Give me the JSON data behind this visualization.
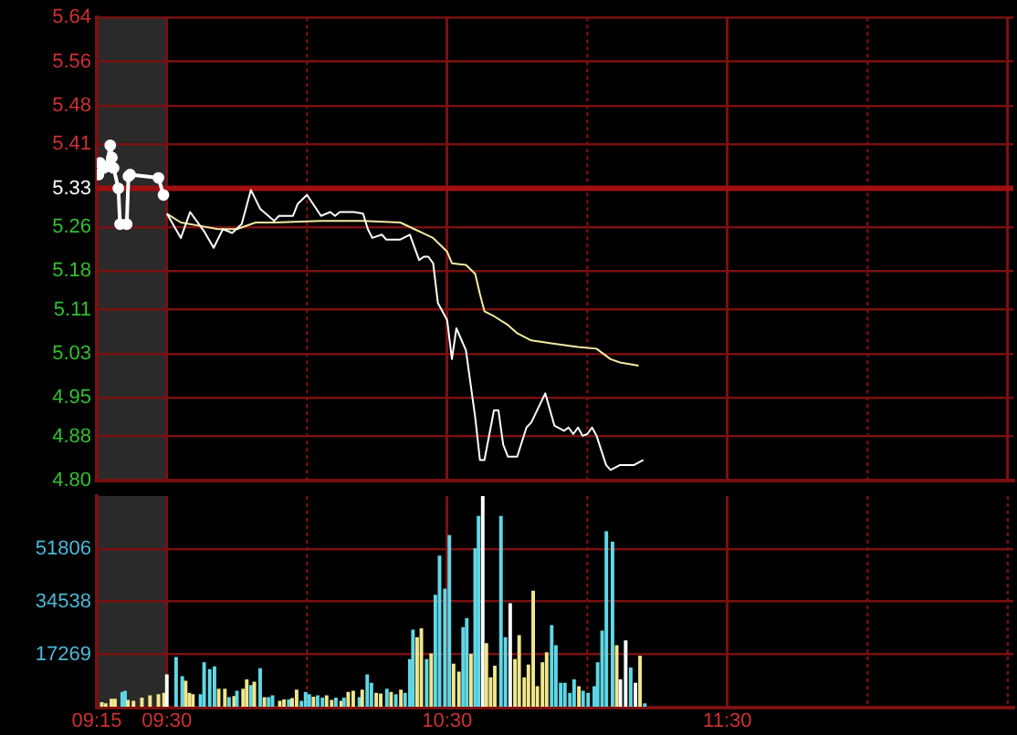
{
  "chart_data": [
    {
      "type": "line",
      "xlim": [
        9.25,
        12.52
      ],
      "xticks": [
        9.25,
        9.5,
        {
          "value": 10,
          "label": null
        },
        10.5,
        {
          "value": 11,
          "label": null
        },
        11.5,
        {
          "value": 12,
          "label": null
        },
        12.5
      ],
      "tick_labels": "y",
      "ylim": [
        4.8,
        5.64
      ],
      "yticks": [
        {
          "value": 4.8,
          "label": "4.80"
        },
        4.88,
        4.95,
        5.03,
        5.11,
        5.18,
        5.26,
        5.33,
        5.41,
        5.48,
        5.56,
        5.64
      ],
      "grid": true,
      "ref_lines": [
        {
          "axis": "y",
          "value": 5.33,
          "color": "#a01010"
        }
      ],
      "bands": [
        {
          "axis": "x",
          "from": 9.25,
          "to": 9.5,
          "color": "#2a2a2a"
        }
      ],
      "series": [
        {
          "color": "#ffffff",
          "marker": "circle",
          "x": [
            9.256,
            9.262,
            9.274,
            9.286,
            9.298,
            9.304,
            9.31,
            9.327,
            9.333,
            9.357,
            9.363,
            9.369,
            9.47,
            9.488
          ],
          "values": [
            5.355,
            5.376,
            5.367,
            5.37,
            5.408,
            5.386,
            5.367,
            5.33,
            5.265,
            5.265,
            5.352,
            5.355,
            5.349,
            5.318
          ]
        },
        {
          "color": "#ffffff",
          "x": [
            9.5,
            9.55,
            9.583,
            9.633,
            9.667,
            9.7,
            9.733,
            9.767,
            9.8,
            9.833,
            9.883,
            9.9,
            9.95,
            9.967,
            10,
            10.05,
            10.083,
            10.1,
            10.117,
            10.15,
            10.167,
            10.2,
            10.217,
            10.233,
            10.267,
            10.283,
            10.333,
            10.367,
            10.4,
            10.417,
            10.433,
            10.45,
            10.467,
            10.5,
            10.517,
            10.533,
            10.567,
            10.6,
            10.617,
            10.633,
            10.667,
            10.683,
            10.7,
            10.717,
            10.75,
            10.783,
            10.8,
            10.85,
            10.883,
            10.917,
            10.933,
            10.95,
            10.967,
            10.983,
            11,
            11.017,
            11.033,
            11.067,
            11.083,
            11.117,
            11.167,
            11.2
          ],
          "values": [
            5.284,
            5.24,
            5.287,
            5.252,
            5.222,
            5.256,
            5.249,
            5.265,
            5.327,
            5.293,
            5.271,
            5.28,
            5.28,
            5.302,
            5.318,
            5.28,
            5.287,
            5.28,
            5.287,
            5.287,
            5.287,
            5.284,
            5.256,
            5.24,
            5.246,
            5.237,
            5.237,
            5.246,
            5.2,
            5.206,
            5.206,
            5.194,
            5.122,
            5.091,
            5.02,
            5.076,
            5.036,
            4.915,
            4.837,
            4.837,
            4.927,
            4.927,
            4.865,
            4.843,
            4.843,
            4.896,
            4.905,
            4.958,
            4.899,
            4.89,
            4.896,
            4.884,
            4.896,
            4.881,
            4.884,
            4.896,
            4.881,
            4.828,
            4.819,
            4.828,
            4.828,
            4.837
          ]
        },
        {
          "color": "#f5eaa0",
          "x": [
            9.5,
            9.55,
            9.617,
            9.683,
            9.75,
            9.817,
            9.883,
            10.05,
            10.2,
            10.333,
            10.383,
            10.45,
            10.5,
            10.517,
            10.567,
            10.6,
            10.617,
            10.633,
            10.667,
            10.717,
            10.75,
            10.8,
            10.883,
            10.967,
            11.033,
            11.083,
            11.117,
            11.183
          ],
          "values": [
            5.284,
            5.268,
            5.262,
            5.256,
            5.256,
            5.268,
            5.268,
            5.271,
            5.271,
            5.268,
            5.256,
            5.24,
            5.215,
            5.194,
            5.191,
            5.175,
            5.138,
            5.107,
            5.098,
            5.082,
            5.067,
            5.054,
            5.048,
            5.042,
            5.039,
            5.02,
            5.014,
            5.008
          ]
        }
      ]
    },
    {
      "type": "bar",
      "xlim": [
        9.25,
        12.52
      ],
      "xticks": [
        {
          "value": 9.25,
          "label": "09:15"
        },
        {
          "value": 9.5,
          "label": "09:30"
        },
        {
          "value": 10,
          "label": null
        },
        {
          "value": 10.5,
          "label": "10:30"
        },
        {
          "value": 11,
          "label": null
        },
        {
          "value": 11.5,
          "label": "11:30"
        },
        {
          "value": 12,
          "label": null
        },
        {
          "value": 12.5,
          "label": null
        }
      ],
      "ylim": [
        0,
        69075
      ],
      "yticks": [
        {
          "value": 0,
          "label": null
        },
        17269,
        34538,
        51806
      ],
      "grid": true,
      "bands": [
        {
          "axis": "x",
          "from": 9.25,
          "to": 9.5,
          "color": "#2a2a2a"
        }
      ],
      "x": [
        9.268,
        9.282,
        9.302,
        9.315,
        9.341,
        9.351,
        9.361,
        9.381,
        9.411,
        9.44,
        9.47,
        9.49,
        9.5,
        9.533,
        9.555,
        9.567,
        9.58,
        9.593,
        9.62,
        9.633,
        9.653,
        9.67,
        9.685,
        9.707,
        9.722,
        9.74,
        9.75,
        9.772,
        9.785,
        9.8,
        9.812,
        9.833,
        9.848,
        9.863,
        9.877,
        9.903,
        9.918,
        9.935,
        9.947,
        9.963,
        9.98,
        9.995,
        10.008,
        10.023,
        10.038,
        10.055,
        10.07,
        10.088,
        10.103,
        10.122,
        10.132,
        10.147,
        10.165,
        10.187,
        10.197,
        10.215,
        10.23,
        10.247,
        10.263,
        10.285,
        10.3,
        10.317,
        10.335,
        10.35,
        10.367,
        10.378,
        10.393,
        10.408,
        10.427,
        10.443,
        10.458,
        10.473,
        10.492,
        10.508,
        10.523,
        10.542,
        10.557,
        10.57,
        10.585,
        10.6,
        10.612,
        10.627,
        10.64,
        10.655,
        10.67,
        10.692,
        10.708,
        10.725,
        10.742,
        10.757,
        10.775,
        10.79,
        10.807,
        10.822,
        10.84,
        10.855,
        10.873,
        10.888,
        10.905,
        10.92,
        10.938,
        10.953,
        10.97,
        10.985,
        11.003,
        11.025,
        11.037,
        11.053,
        11.068,
        11.09,
        11.105,
        11.118,
        11.137,
        11.155,
        11.172,
        11.188,
        11.205
      ],
      "values": [
        1500,
        1100,
        2600,
        2600,
        4800,
        5200,
        2200,
        1900,
        3000,
        3700,
        4100,
        4500,
        10600,
        16200,
        10000,
        8500,
        4500,
        4100,
        4100,
        14500,
        12300,
        13200,
        5900,
        5900,
        3100,
        3500,
        5200,
        5900,
        8900,
        7100,
        8200,
        12600,
        3100,
        3100,
        3700,
        1900,
        2400,
        2400,
        2800,
        5600,
        1900,
        4800,
        4100,
        3300,
        3700,
        3000,
        3700,
        2200,
        3000,
        1900,
        3000,
        4800,
        5200,
        3100,
        5600,
        10600,
        7800,
        4500,
        4300,
        5900,
        4800,
        4100,
        5600,
        4500,
        15600,
        25200,
        22700,
        25600,
        15600,
        17400,
        36600,
        49400,
        38600,
        56100,
        14100,
        11500,
        26000,
        29000,
        17300,
        51800,
        62400,
        69000,
        20800,
        9600,
        13400,
        62400,
        22700,
        33800,
        15600,
        23400,
        9600,
        13800,
        37900,
        6700,
        14500,
        17800,
        26700,
        20100,
        7800,
        7800,
        4500,
        8900,
        6700,
        5200,
        4500,
        6700,
        14500,
        24900,
        57400,
        54000,
        20100,
        8900,
        21700,
        12800,
        7800,
        16700,
        1100
      ],
      "colors": [
        "#f0e68c",
        "#f0e68c",
        "#f0e68c",
        "#f0e68c",
        "#5fd7e6",
        "#5fd7e6",
        "#f0e68c",
        "#f0e68c",
        "#f0e68c",
        "#f0e68c",
        "#f0e68c",
        "#f0e68c",
        "#ffffff",
        "#5fd7e6",
        "#5fd7e6",
        "#f0e68c",
        "#f0e68c",
        "#f0e68c",
        "#5fd7e6",
        "#5fd7e6",
        "#5fd7e6",
        "#5fd7e6",
        "#f0e68c",
        "#f0e68c",
        "#5fd7e6",
        "#f0e68c",
        "#5fd7e6",
        "#f0e68c",
        "#f0e68c",
        "#5fd7e6",
        "#f0e68c",
        "#5fd7e6",
        "#f0e68c",
        "#5fd7e6",
        "#5fd7e6",
        "#f0e68c",
        "#f0e68c",
        "#5fd7e6",
        "#f0e68c",
        "#f0e68c",
        "#5fd7e6",
        "#5fd7e6",
        "#5fd7e6",
        "#f0e68c",
        "#5fd7e6",
        "#5fd7e6",
        "#f0e68c",
        "#f0e68c",
        "#5fd7e6",
        "#f0e68c",
        "#5fd7e6",
        "#f0e68c",
        "#f0e68c",
        "#5fd7e6",
        "#f0e68c",
        "#5fd7e6",
        "#5fd7e6",
        "#f0e68c",
        "#f0e68c",
        "#5fd7e6",
        "#f0e68c",
        "#5fd7e6",
        "#f0e68c",
        "#5fd7e6",
        "#5fd7e6",
        "#5fd7e6",
        "#f0e68c",
        "#f0e68c",
        "#5fd7e6",
        "#f0e68c",
        "#5fd7e6",
        "#5fd7e6",
        "#5fd7e6",
        "#5fd7e6",
        "#f0e68c",
        "#f0e68c",
        "#5fd7e6",
        "#5fd7e6",
        "#f0e68c",
        "#5fd7e6",
        "#5fd7e6",
        "#ffffff",
        "#f0e68c",
        "#f0e68c",
        "#f0e68c",
        "#5fd7e6",
        "#5fd7e6",
        "#ffffff",
        "#f0e68c",
        "#f0e68c",
        "#f0e68c",
        "#f0e68c",
        "#f0e68c",
        "#f0e68c",
        "#f0e68c",
        "#f0e68c",
        "#5fd7e6",
        "#5fd7e6",
        "#5fd7e6",
        "#5fd7e6",
        "#5fd7e6",
        "#5fd7e6",
        "#f0e68c",
        "#5fd7e6",
        "#5fd7e6",
        "#5fd7e6",
        "#5fd7e6",
        "#5fd7e6",
        "#5fd7e6",
        "#5fd7e6",
        "#f0e68c",
        "#ffffff",
        "#ffffff",
        "#5fd7e6",
        "#ffffff",
        "#f0e68c",
        "#5fd7e6"
      ]
    }
  ]
}
